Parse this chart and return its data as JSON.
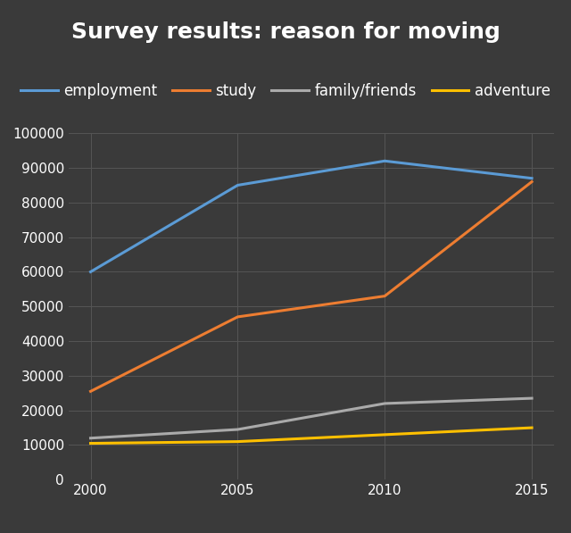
{
  "title": "Survey results: reason for moving",
  "background_color": "#3a3a3a",
  "text_color": "#ffffff",
  "grid_color": "#555555",
  "years": [
    2000,
    2005,
    2010,
    2015
  ],
  "series": [
    {
      "label": "employment",
      "color": "#5b9bd5",
      "values": [
        60000,
        85000,
        92000,
        87000
      ]
    },
    {
      "label": "study",
      "color": "#ed7d31",
      "values": [
        25500,
        47000,
        53000,
        86000
      ]
    },
    {
      "label": "family/friends",
      "color": "#aaaaaa",
      "values": [
        12000,
        14500,
        22000,
        23500
      ]
    },
    {
      "label": "adventure",
      "color": "#ffc000",
      "values": [
        10500,
        11000,
        13000,
        15000
      ]
    }
  ],
  "ylim": [
    0,
    100000
  ],
  "yticks": [
    0,
    10000,
    20000,
    30000,
    40000,
    50000,
    60000,
    70000,
    80000,
    90000,
    100000
  ],
  "title_fontsize": 18,
  "legend_fontsize": 12,
  "tick_fontsize": 11,
  "linewidth": 2.2
}
